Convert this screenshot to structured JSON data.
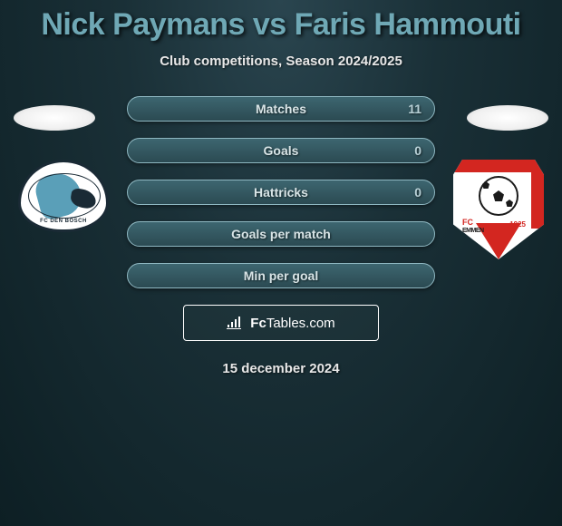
{
  "title": "Nick Paymans vs Faris Hammouti",
  "subtitle": "Club competitions, Season 2024/2025",
  "stats": [
    {
      "label": "Matches",
      "value_right": "11"
    },
    {
      "label": "Goals",
      "value_right": "0"
    },
    {
      "label": "Hattricks",
      "value_right": "0"
    },
    {
      "label": "Goals per match",
      "value_right": ""
    },
    {
      "label": "Min per goal",
      "value_right": ""
    }
  ],
  "branding": {
    "prefix": "Fc",
    "suffix": "Tables.com"
  },
  "date": "15 december 2024",
  "club_left": {
    "name": "FC DEN BOSCH"
  },
  "club_right": {
    "fc": "FC",
    "name": "EMMEN",
    "year": "1925"
  },
  "colors": {
    "title_color": "#6fa8b5",
    "pill_bg_top": "#3d6670",
    "pill_bg_bottom": "#2b4a52",
    "pill_border": "#8fb8c2",
    "emmen_red": "#d32620"
  }
}
